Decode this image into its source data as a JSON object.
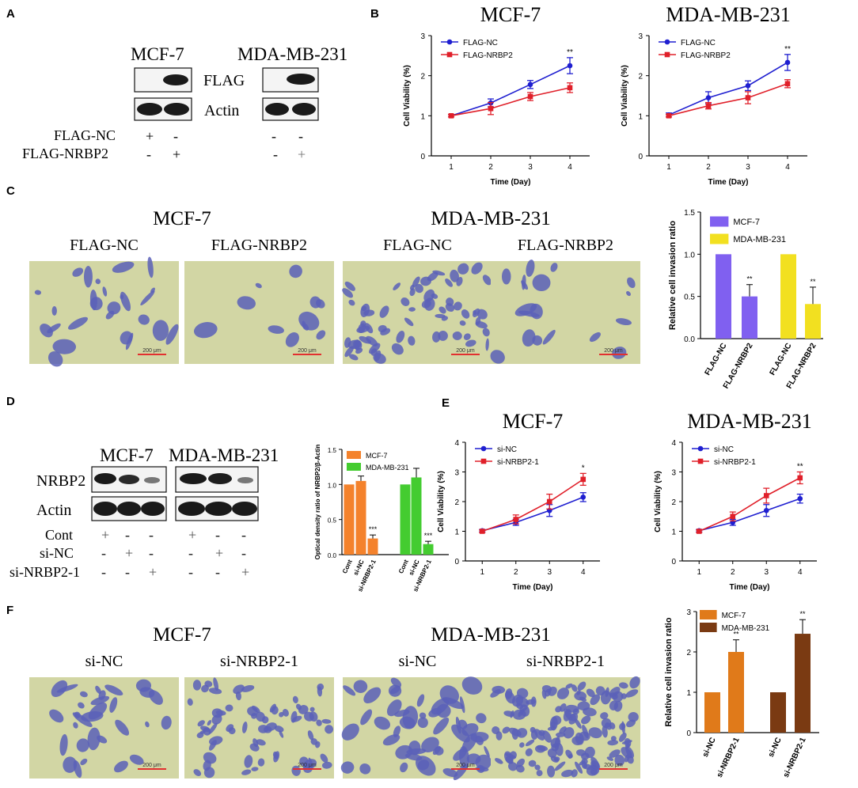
{
  "panel_letters": {
    "A": "A",
    "B": "B",
    "C": "C",
    "D": "D",
    "E": "E",
    "F": "F"
  },
  "colors": {
    "blue": "#1f1fd0",
    "red": "#e0202a",
    "purple": "#8060f0",
    "yellow": "#f2e020",
    "orange": "#f4822c",
    "green": "#44cc30",
    "dark_orange": "#e07a1a",
    "brown": "#7a3a12",
    "micro_bg": "#d2d6a4",
    "cell": "#5a60b8",
    "scalebar": "#e23030"
  },
  "panelA": {
    "lines": [
      "MCF-7",
      "MDA-MB-231"
    ],
    "row_labels": [
      "FLAG",
      "Actin"
    ],
    "cond_labels": [
      "FLAG-NC",
      "FLAG-NRBP2"
    ],
    "signs": {
      "mcf": [
        [
          "+",
          "-"
        ],
        [
          "-",
          "+"
        ]
      ],
      "mda": [
        [
          "-",
          "-"
        ],
        [
          "-",
          "+"
        ]
      ]
    }
  },
  "panelB": {
    "charts": [
      {
        "title": "MCF-7",
        "ylabel": "Cell Viability (%)",
        "xlabel": "Time (Day)",
        "sig": "**",
        "x": [
          1,
          2,
          3,
          4
        ],
        "ylim": [
          0,
          3
        ],
        "yticks": [
          0,
          1,
          2,
          3
        ],
        "series": [
          {
            "name": "FLAG-NC",
            "color": "#1f1fd0",
            "values": [
              1.0,
              1.32,
              1.78,
              2.25
            ],
            "err": [
              0.03,
              0.1,
              0.1,
              0.2
            ]
          },
          {
            "name": "FLAG-NRBP2",
            "color": "#e0202a",
            "values": [
              1.0,
              1.18,
              1.48,
              1.7
            ],
            "err": [
              0.03,
              0.15,
              0.1,
              0.12
            ]
          }
        ]
      },
      {
        "title": "MDA-MB-231",
        "ylabel": "Cell Viability (%)",
        "xlabel": "Time (Day)",
        "sig": "**",
        "x": [
          1,
          2,
          3,
          4
        ],
        "ylim": [
          0,
          3
        ],
        "yticks": [
          0,
          1,
          2,
          3
        ],
        "series": [
          {
            "name": "FLAG-NC",
            "color": "#1f1fd0",
            "values": [
              1.02,
              1.45,
              1.75,
              2.33
            ],
            "err": [
              0.05,
              0.15,
              0.12,
              0.2
            ]
          },
          {
            "name": "FLAG-NRBP2",
            "color": "#e0202a",
            "values": [
              1.0,
              1.25,
              1.45,
              1.8
            ],
            "err": [
              0.03,
              0.08,
              0.15,
              0.1
            ]
          }
        ]
      }
    ]
  },
  "panelC": {
    "lines": [
      "MCF-7",
      "MDA-MB-231"
    ],
    "conds": [
      "FLAG-NC",
      "FLAG-NRBP2",
      "FLAG-NC",
      "FLAG-NRBP2"
    ],
    "scalebar": "200 μm"
  },
  "panelF": {
    "lines": [
      "MCF-7",
      "MDA-MB-231"
    ],
    "conds": [
      "si-NC",
      "si-NRBP2-1",
      "si-NC",
      "si-NRBP2-1"
    ],
    "scalebar": "200 μm"
  },
  "panelD": {
    "lines": [
      "MCF-7",
      "MDA-MB-231"
    ],
    "row_labels": [
      "NRBP2",
      "Actin"
    ],
    "cond_labels": [
      "Cont",
      "si-NC",
      "si-NRBP2-1"
    ],
    "signs": [
      [
        "+",
        "-",
        "-",
        "+",
        "-",
        "-"
      ],
      [
        "-",
        "+",
        "-",
        "-",
        "+",
        "-"
      ],
      [
        "-",
        "-",
        "+",
        "-",
        "-",
        "+"
      ]
    ]
  },
  "chart_data": [
    {
      "id": "B-MCF7",
      "type": "line",
      "title": "MCF-7",
      "xlabel": "Time (Day)",
      "ylabel": "Cell Viability (%)",
      "x": [
        1,
        2,
        3,
        4
      ],
      "ylim": [
        0,
        3
      ],
      "series": [
        {
          "name": "FLAG-NC",
          "values": [
            1.0,
            1.32,
            1.78,
            2.25
          ]
        },
        {
          "name": "FLAG-NRBP2",
          "values": [
            1.0,
            1.18,
            1.48,
            1.7
          ]
        }
      ],
      "annotation": "**"
    },
    {
      "id": "B-MDA",
      "type": "line",
      "title": "MDA-MB-231",
      "xlabel": "Time (Day)",
      "ylabel": "Cell Viability (%)",
      "x": [
        1,
        2,
        3,
        4
      ],
      "ylim": [
        0,
        3
      ],
      "series": [
        {
          "name": "FLAG-NC",
          "values": [
            1.02,
            1.45,
            1.75,
            2.33
          ]
        },
        {
          "name": "FLAG-NRBP2",
          "values": [
            1.0,
            1.25,
            1.45,
            1.8
          ]
        }
      ],
      "annotation": "**"
    },
    {
      "id": "C-bar",
      "type": "bar",
      "ylabel": "Relative cell invasion ratio",
      "ylim": [
        0,
        1.5
      ],
      "yticks": [
        "0.0",
        "0.5",
        "1.0",
        "1.5"
      ],
      "categories": [
        "FLAG-NC",
        "FLAG-NRBP2",
        "FLAG-NC",
        "FLAG-NRBP2"
      ],
      "bars": [
        {
          "series": "MCF-7",
          "value": 1.0,
          "err": 0,
          "color": "#8060f0",
          "sig": ""
        },
        {
          "series": "MCF-7",
          "value": 0.5,
          "err": 0.14,
          "color": "#8060f0",
          "sig": "**"
        },
        {
          "series": "MDA-MB-231",
          "value": 1.0,
          "err": 0,
          "color": "#f2e020",
          "sig": ""
        },
        {
          "series": "MDA-MB-231",
          "value": 0.41,
          "err": 0.2,
          "color": "#f2e020",
          "sig": "**"
        }
      ],
      "legend": [
        {
          "name": "MCF-7",
          "color": "#8060f0"
        },
        {
          "name": "MDA-MB-231",
          "color": "#f2e020"
        }
      ]
    },
    {
      "id": "D-bar",
      "type": "bar",
      "ylabel": "Optical density ratio of NRBP2/β-Actin",
      "ylim": [
        0,
        1.5
      ],
      "yticks": [
        "0.0",
        "0.5",
        "1.0",
        "1.5"
      ],
      "categories": [
        "Cont",
        "si-NC",
        "si-NRBP2-1",
        "Cont",
        "si-NC",
        "si-NRBP2-1"
      ],
      "bars": [
        {
          "series": "MCF-7",
          "value": 1.0,
          "err": 0,
          "color": "#f4822c",
          "sig": ""
        },
        {
          "series": "MCF-7",
          "value": 1.05,
          "err": 0.07,
          "color": "#f4822c",
          "sig": ""
        },
        {
          "series": "MCF-7",
          "value": 0.23,
          "err": 0.05,
          "color": "#f4822c",
          "sig": "***"
        },
        {
          "series": "MDA-MB-231",
          "value": 1.0,
          "err": 0,
          "color": "#44cc30",
          "sig": ""
        },
        {
          "series": "MDA-MB-231",
          "value": 1.1,
          "err": 0.13,
          "color": "#44cc30",
          "sig": ""
        },
        {
          "series": "MDA-MB-231",
          "value": 0.15,
          "err": 0.04,
          "color": "#44cc30",
          "sig": "***"
        }
      ],
      "legend": [
        {
          "name": "MCF-7",
          "color": "#f4822c"
        },
        {
          "name": "MDA-MB-231",
          "color": "#44cc30"
        }
      ]
    },
    {
      "id": "E-MCF7",
      "type": "line",
      "title": "MCF-7",
      "xlabel": "Time (Day)",
      "ylabel": "Cell Viability (%)",
      "x": [
        1,
        2,
        3,
        4
      ],
      "ylim": [
        0,
        4
      ],
      "series": [
        {
          "name": "si-NC",
          "values": [
            1.02,
            1.3,
            1.7,
            2.15
          ]
        },
        {
          "name": "si-NRBP2-1",
          "values": [
            1.0,
            1.4,
            2.0,
            2.75
          ]
        }
      ],
      "annotation": "*"
    },
    {
      "id": "E-MDA",
      "type": "line",
      "title": "MDA-MB-231",
      "xlabel": "Time (Day)",
      "ylabel": "Cell Viability (%)",
      "x": [
        1,
        2,
        3,
        4
      ],
      "ylim": [
        0,
        4
      ],
      "series": [
        {
          "name": "si-NC",
          "values": [
            1.02,
            1.3,
            1.7,
            2.1
          ]
        },
        {
          "name": "si-NRBP2-1",
          "values": [
            1.0,
            1.5,
            2.2,
            2.8
          ]
        }
      ],
      "annotation": "**"
    },
    {
      "id": "F-bar",
      "type": "bar",
      "ylabel": "Relative cell invasion ratio",
      "ylim": [
        0,
        3
      ],
      "yticks": [
        "0",
        "1",
        "2",
        "3"
      ],
      "categories": [
        "si-NC",
        "si-NRBP2-1",
        "si-NC",
        "si-NRBP2-1"
      ],
      "bars": [
        {
          "series": "MCF-7",
          "value": 1.0,
          "err": 0,
          "color": "#e07a1a",
          "sig": ""
        },
        {
          "series": "MCF-7",
          "value": 2.0,
          "err": 0.3,
          "color": "#e07a1a",
          "sig": "**"
        },
        {
          "series": "MDA-MB-231",
          "value": 1.0,
          "err": 0,
          "color": "#7a3a12",
          "sig": ""
        },
        {
          "series": "MDA-MB-231",
          "value": 2.45,
          "err": 0.35,
          "color": "#7a3a12",
          "sig": "**"
        }
      ],
      "legend": [
        {
          "name": "MCF-7",
          "color": "#e07a1a"
        },
        {
          "name": "MDA-MB-231",
          "color": "#7a3a12"
        }
      ]
    }
  ]
}
